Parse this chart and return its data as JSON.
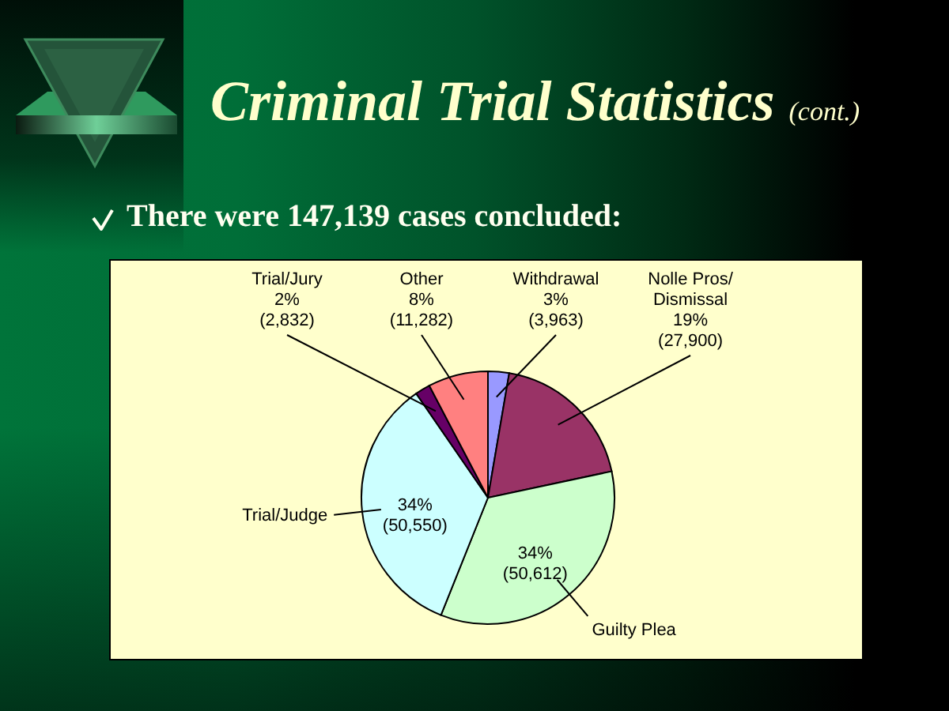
{
  "chart_data": {
    "type": "pie",
    "title": "Criminal Trial Statistics (cont.)",
    "subtitle": "There were 147,139 cases concluded:",
    "categories": [
      "Withdrawal",
      "Nolle Pros/\nDismissal",
      "Guilty Plea",
      "Trial/Judge",
      "Trial/Jury",
      "Other"
    ],
    "values": [
      3963,
      27900,
      50612,
      50550,
      2832,
      11282
    ],
    "colors": [
      "#9999ff",
      "#993366",
      "#ccffcc",
      "#ccffff",
      "#660066",
      "#ff8080"
    ],
    "value_labels": [
      "3%\n(3,963)",
      "19%\n(27,900)",
      "34%\n(50,612)",
      "34%\n(50,550)",
      "2%\n(2,832)",
      "8%\n(11,282)"
    ]
  }
}
